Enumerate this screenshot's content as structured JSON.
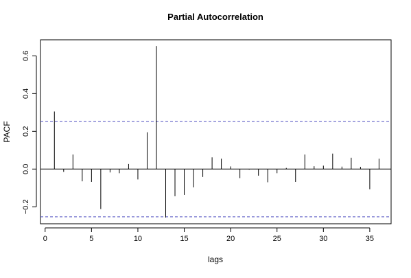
{
  "chart_data": {
    "type": "bar",
    "title": "Partial Autocorrelation",
    "xlabel": "lags",
    "ylabel": "PACF",
    "xlim": [
      -0.5,
      37.3
    ],
    "ylim": [
      -0.29,
      0.685
    ],
    "xticks": [
      0,
      5,
      10,
      15,
      20,
      25,
      30,
      35
    ],
    "yticks": [
      -0.2,
      0.0,
      0.2,
      0.4,
      0.6
    ],
    "xtick_labels": [
      "0",
      "5",
      "10",
      "15",
      "20",
      "25",
      "30",
      "35"
    ],
    "ytick_labels": [
      "−0.2",
      "0.0",
      "0.2",
      "0.4",
      "0.6"
    ],
    "confidence_band": [
      0.253,
      -0.253
    ],
    "zero_line": 0,
    "grid": false,
    "colors": {
      "bars": "#000000",
      "band": "#4b4bbf",
      "frame": "#000000"
    },
    "lags": [
      1,
      2,
      3,
      4,
      5,
      6,
      7,
      8,
      9,
      10,
      11,
      12,
      13,
      14,
      15,
      16,
      17,
      18,
      19,
      20,
      21,
      22,
      23,
      24,
      25,
      26,
      27,
      28,
      29,
      30,
      31,
      32,
      33,
      34,
      35,
      36
    ],
    "values": [
      0.305,
      -0.015,
      0.077,
      -0.065,
      -0.068,
      -0.212,
      -0.018,
      -0.022,
      0.027,
      -0.055,
      0.195,
      0.652,
      -0.257,
      -0.144,
      -0.137,
      -0.097,
      -0.042,
      0.062,
      0.055,
      0.014,
      -0.048,
      -0.003,
      -0.035,
      -0.07,
      -0.022,
      0.006,
      -0.068,
      0.077,
      0.015,
      0.018,
      0.082,
      0.013,
      0.06,
      0.012,
      -0.107,
      0.055
    ]
  }
}
